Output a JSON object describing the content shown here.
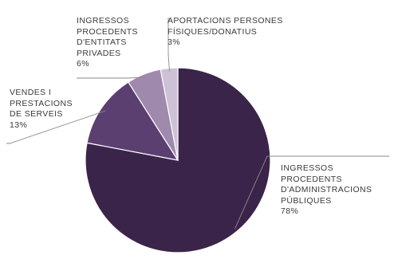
{
  "chart_data": {
    "type": "pie",
    "colors": [
      "#3b2449",
      "#5b3f71",
      "#9f8aad",
      "#cdc1d6"
    ],
    "slices": [
      {
        "label_lines": [
          "INGRESSOS",
          "PROCEDENTS",
          "D'ADMINISTRACIONS",
          "PÚBLIQUES"
        ],
        "value_label": "78%",
        "value": 78
      },
      {
        "label_lines": [
          "VENDES I",
          "PRESTACIONS",
          "DE SERVEIS"
        ],
        "value_label": "13%",
        "value": 13
      },
      {
        "label_lines": [
          "INGRESSOS",
          "PROCEDENTS",
          "D'ENTITATS",
          "PRIVADES"
        ],
        "value_label": "6%",
        "value": 6
      },
      {
        "label_lines": [
          "APORTACIONS PERSONES",
          "FÍSIQUES/DONATIUS"
        ],
        "value_label": "3%",
        "value": 3
      }
    ]
  }
}
